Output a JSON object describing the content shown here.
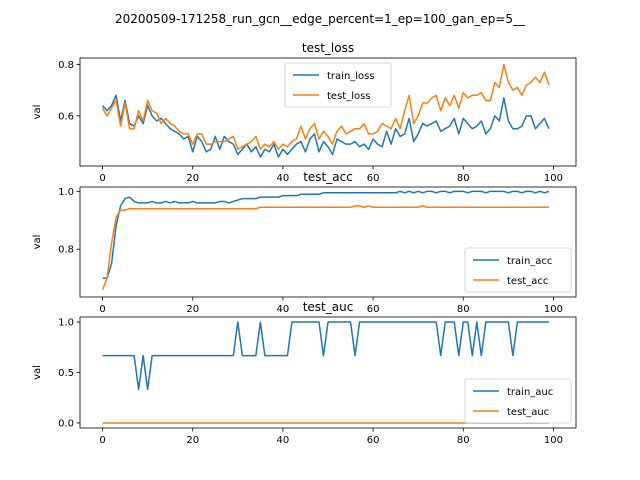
{
  "figure": {
    "suptitle": "20200509-171258_run_gcn__edge_percent=1_ep=100_gan_ep=5__"
  },
  "colors": {
    "series1": "#1f77b4",
    "series2": "#ff7f0e"
  },
  "chart_data": [
    {
      "type": "line",
      "title": "test_loss",
      "xlabel": "",
      "ylabel": "val",
      "xlim": [
        -5,
        105
      ],
      "ylim": [
        0.405,
        0.825
      ],
      "xticks": [
        0,
        20,
        40,
        60,
        80,
        100
      ],
      "yticks": [
        0.6,
        0.8
      ],
      "ytick_labels": [
        "0.6",
        "0.8"
      ],
      "legend": "top-center",
      "series": [
        {
          "name": "train_loss",
          "values": [
            0.64,
            0.62,
            0.64,
            0.68,
            0.58,
            0.66,
            0.57,
            0.56,
            0.6,
            0.57,
            0.64,
            0.6,
            0.58,
            0.59,
            0.57,
            0.55,
            0.54,
            0.53,
            0.51,
            0.52,
            0.46,
            0.52,
            0.5,
            0.46,
            0.47,
            0.52,
            0.47,
            0.52,
            0.5,
            0.49,
            0.45,
            0.47,
            0.49,
            0.46,
            0.48,
            0.44,
            0.47,
            0.46,
            0.49,
            0.44,
            0.47,
            0.45,
            0.47,
            0.49,
            0.5,
            0.46,
            0.51,
            0.53,
            0.46,
            0.5,
            0.48,
            0.45,
            0.51,
            0.5,
            0.49,
            0.49,
            0.5,
            0.48,
            0.49,
            0.47,
            0.51,
            0.49,
            0.48,
            0.54,
            0.49,
            0.55,
            0.52,
            0.53,
            0.59,
            0.5,
            0.53,
            0.57,
            0.56,
            0.57,
            0.58,
            0.54,
            0.55,
            0.56,
            0.59,
            0.53,
            0.59,
            0.57,
            0.55,
            0.56,
            0.58,
            0.53,
            0.55,
            0.6,
            0.58,
            0.67,
            0.58,
            0.55,
            0.55,
            0.56,
            0.6,
            0.6,
            0.55,
            0.57,
            0.59,
            0.55
          ]
        },
        {
          "name": "test_loss",
          "values": [
            0.63,
            0.6,
            0.63,
            0.66,
            0.56,
            0.65,
            0.55,
            0.55,
            0.62,
            0.58,
            0.66,
            0.62,
            0.61,
            0.57,
            0.59,
            0.57,
            0.56,
            0.54,
            0.53,
            0.53,
            0.49,
            0.53,
            0.53,
            0.49,
            0.49,
            0.5,
            0.5,
            0.5,
            0.51,
            0.52,
            0.47,
            0.48,
            0.49,
            0.5,
            0.52,
            0.47,
            0.49,
            0.48,
            0.5,
            0.47,
            0.49,
            0.48,
            0.5,
            0.51,
            0.56,
            0.51,
            0.55,
            0.57,
            0.51,
            0.54,
            0.52,
            0.49,
            0.54,
            0.56,
            0.53,
            0.54,
            0.55,
            0.55,
            0.57,
            0.53,
            0.53,
            0.54,
            0.57,
            0.56,
            0.55,
            0.59,
            0.55,
            0.62,
            0.68,
            0.57,
            0.6,
            0.65,
            0.65,
            0.67,
            0.68,
            0.62,
            0.67,
            0.64,
            0.68,
            0.63,
            0.69,
            0.67,
            0.68,
            0.68,
            0.69,
            0.66,
            0.66,
            0.73,
            0.71,
            0.8,
            0.73,
            0.7,
            0.71,
            0.68,
            0.72,
            0.73,
            0.75,
            0.73,
            0.77,
            0.72
          ]
        }
      ]
    },
    {
      "type": "line",
      "title": "test_acc",
      "xlabel": "",
      "ylabel": "val",
      "xlim": [
        -5,
        105
      ],
      "ylim": [
        0.635,
        1.015
      ],
      "xticks": [
        0,
        20,
        40,
        60,
        80,
        100
      ],
      "yticks": [
        0.8,
        1.0
      ],
      "ytick_labels": [
        "0.8",
        "1.0"
      ],
      "legend": "lower-right",
      "series": [
        {
          "name": "train_acc",
          "values": [
            0.7,
            0.7,
            0.75,
            0.88,
            0.95,
            0.975,
            0.98,
            0.965,
            0.96,
            0.96,
            0.96,
            0.965,
            0.96,
            0.96,
            0.965,
            0.96,
            0.965,
            0.96,
            0.96,
            0.96,
            0.965,
            0.96,
            0.96,
            0.96,
            0.96,
            0.96,
            0.965,
            0.965,
            0.96,
            0.965,
            0.97,
            0.975,
            0.975,
            0.975,
            0.975,
            0.98,
            0.98,
            0.98,
            0.98,
            0.98,
            0.985,
            0.985,
            0.985,
            0.985,
            0.99,
            0.99,
            0.99,
            0.99,
            0.99,
            0.995,
            0.995,
            0.995,
            0.995,
            0.995,
            0.995,
            0.995,
            0.995,
            0.995,
            0.995,
            0.995,
            0.995,
            0.995,
            0.995,
            0.995,
            0.995,
            0.995,
            1.0,
            0.995,
            1.0,
            0.995,
            1.0,
            0.995,
            1.0,
            1.0,
            0.995,
            1.0,
            1.0,
            0.995,
            1.0,
            1.0,
            1.0,
            0.995,
            1.0,
            1.0,
            1.0,
            0.995,
            1.0,
            1.0,
            1.0,
            1.0,
            0.995,
            1.0,
            1.0,
            0.995,
            1.0,
            1.0,
            0.995,
            1.0,
            0.995,
            1.0
          ]
        },
        {
          "name": "test_acc",
          "values": [
            0.66,
            0.7,
            0.82,
            0.91,
            0.935,
            0.935,
            0.94,
            0.94,
            0.94,
            0.94,
            0.94,
            0.94,
            0.94,
            0.94,
            0.94,
            0.94,
            0.94,
            0.94,
            0.94,
            0.94,
            0.94,
            0.94,
            0.94,
            0.94,
            0.94,
            0.94,
            0.94,
            0.94,
            0.94,
            0.94,
            0.94,
            0.94,
            0.94,
            0.94,
            0.94,
            0.945,
            0.945,
            0.945,
            0.945,
            0.945,
            0.945,
            0.945,
            0.945,
            0.945,
            0.945,
            0.945,
            0.945,
            0.945,
            0.945,
            0.945,
            0.945,
            0.945,
            0.945,
            0.945,
            0.945,
            0.945,
            0.95,
            0.95,
            0.945,
            0.95,
            0.945,
            0.945,
            0.945,
            0.945,
            0.945,
            0.945,
            0.945,
            0.945,
            0.945,
            0.945,
            0.945,
            0.95,
            0.945,
            0.945,
            0.945,
            0.945,
            0.945,
            0.945,
            0.945,
            0.945,
            0.945,
            0.945,
            0.945,
            0.945,
            0.945,
            0.945,
            0.945,
            0.945,
            0.945,
            0.945,
            0.945,
            0.945,
            0.945,
            0.945,
            0.945,
            0.945,
            0.945,
            0.945,
            0.945,
            0.945
          ]
        }
      ]
    },
    {
      "type": "line",
      "title": "test_auc",
      "xlabel": "",
      "ylabel": "val",
      "xlim": [
        -5,
        105
      ],
      "ylim": [
        -0.05,
        1.05
      ],
      "xticks": [
        0,
        20,
        40,
        60,
        80,
        100
      ],
      "yticks": [
        0.0,
        0.5,
        1.0
      ],
      "ytick_labels": [
        "0.0",
        "0.5",
        "1.0"
      ],
      "legend": "lower-right",
      "series": [
        {
          "name": "train_auc",
          "values": [
            0.667,
            0.667,
            0.667,
            0.667,
            0.667,
            0.667,
            0.667,
            0.667,
            0.333,
            0.667,
            0.333,
            0.667,
            0.667,
            0.667,
            0.667,
            0.667,
            0.667,
            0.667,
            0.667,
            0.667,
            0.667,
            0.667,
            0.667,
            0.667,
            0.667,
            0.667,
            0.667,
            0.667,
            0.667,
            0.667,
            1.0,
            0.667,
            0.667,
            0.667,
            0.667,
            1.0,
            0.667,
            0.667,
            0.667,
            0.667,
            0.667,
            0.667,
            1.0,
            1.0,
            1.0,
            1.0,
            1.0,
            1.0,
            1.0,
            0.667,
            1.0,
            1.0,
            1.0,
            1.0,
            1.0,
            1.0,
            0.667,
            1.0,
            1.0,
            1.0,
            1.0,
            1.0,
            1.0,
            1.0,
            1.0,
            1.0,
            1.0,
            1.0,
            1.0,
            1.0,
            1.0,
            1.0,
            1.0,
            1.0,
            1.0,
            0.667,
            1.0,
            1.0,
            1.0,
            0.667,
            1.0,
            1.0,
            0.667,
            1.0,
            0.667,
            1.0,
            1.0,
            1.0,
            1.0,
            1.0,
            1.0,
            0.667,
            1.0,
            1.0,
            1.0,
            1.0,
            1.0,
            1.0,
            1.0,
            1.0
          ]
        },
        {
          "name": "test_auc",
          "values": [
            0,
            0,
            0,
            0,
            0,
            0,
            0,
            0,
            0,
            0,
            0,
            0,
            0,
            0,
            0,
            0,
            0,
            0,
            0,
            0,
            0,
            0,
            0,
            0,
            0,
            0,
            0,
            0,
            0,
            0,
            0,
            0,
            0,
            0,
            0,
            0,
            0,
            0,
            0,
            0,
            0,
            0,
            0,
            0,
            0,
            0,
            0,
            0,
            0,
            0,
            0,
            0,
            0,
            0,
            0,
            0,
            0,
            0,
            0,
            0,
            0,
            0,
            0,
            0,
            0,
            0,
            0,
            0,
            0,
            0,
            0,
            0,
            0,
            0,
            0,
            0,
            0,
            0,
            0,
            0,
            0,
            0,
            0,
            0,
            0,
            0,
            0,
            0,
            0,
            0,
            0,
            0,
            0,
            0,
            0,
            0,
            0,
            0,
            0,
            0
          ]
        }
      ]
    }
  ]
}
